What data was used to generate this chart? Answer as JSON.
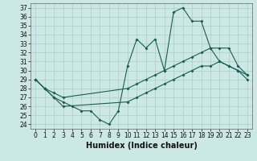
{
  "xlabel": "Humidex (Indice chaleur)",
  "xlim": [
    -0.5,
    23.5
  ],
  "ylim": [
    23.5,
    37.5
  ],
  "yticks": [
    24,
    25,
    26,
    27,
    28,
    29,
    30,
    31,
    32,
    33,
    34,
    35,
    36,
    37
  ],
  "xticks": [
    0,
    1,
    2,
    3,
    4,
    5,
    6,
    7,
    8,
    9,
    10,
    11,
    12,
    13,
    14,
    15,
    16,
    17,
    18,
    19,
    20,
    21,
    22,
    23
  ],
  "bg_color": "#cce8e4",
  "grid_color": "#aaccca",
  "line_color": "#1a5c50",
  "line1_x": [
    0,
    1,
    2,
    3,
    4,
    5,
    6,
    7,
    8,
    9,
    10,
    11,
    12,
    13,
    14,
    15,
    16,
    17,
    18,
    19,
    20,
    21,
    22,
    23
  ],
  "line1_y": [
    29.0,
    28.0,
    27.0,
    26.5,
    26.0,
    25.5,
    25.5,
    24.5,
    24.0,
    25.5,
    30.5,
    33.5,
    32.5,
    33.5,
    30.0,
    36.5,
    37.0,
    35.5,
    35.5,
    32.5,
    31.0,
    30.5,
    30.0,
    29.5
  ],
  "line2_x": [
    0,
    1,
    2,
    3,
    10,
    11,
    12,
    13,
    14,
    15,
    16,
    17,
    18,
    19,
    20,
    21,
    22,
    23
  ],
  "line2_y": [
    29.0,
    28.0,
    27.5,
    27.0,
    28.0,
    28.5,
    29.0,
    29.5,
    30.0,
    30.5,
    31.0,
    31.5,
    32.0,
    32.5,
    32.5,
    32.5,
    30.5,
    29.5
  ],
  "line3_x": [
    0,
    1,
    2,
    3,
    10,
    11,
    12,
    13,
    14,
    15,
    16,
    17,
    18,
    19,
    20,
    21,
    22,
    23
  ],
  "line3_y": [
    29.0,
    28.0,
    27.0,
    26.0,
    26.5,
    27.0,
    27.5,
    28.0,
    28.5,
    29.0,
    29.5,
    30.0,
    30.5,
    30.5,
    31.0,
    30.5,
    30.0,
    29.0
  ],
  "tick_fontsize": 5.5,
  "xlabel_fontsize": 7.0
}
